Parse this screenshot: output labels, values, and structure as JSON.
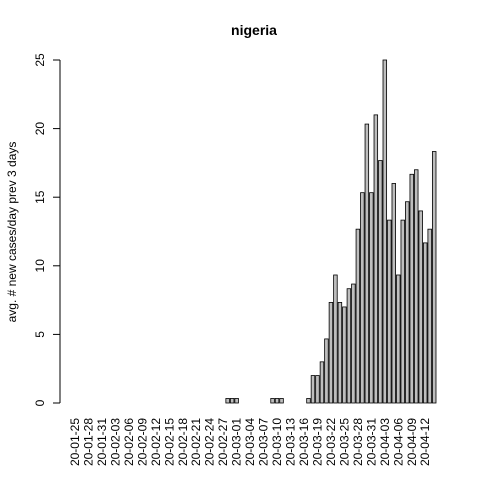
{
  "chart_data": {
    "type": "bar",
    "title": "nigeria",
    "y_label": "avg. # new cases/day prev  3  days",
    "categories": [
      "20-01-25",
      null,
      null,
      "20-01-28",
      null,
      null,
      "20-01-31",
      null,
      null,
      "20-02-03",
      null,
      null,
      "20-02-06",
      null,
      null,
      "20-02-09",
      null,
      null,
      "20-02-12",
      null,
      null,
      "20-02-15",
      null,
      null,
      "20-02-18",
      null,
      null,
      "20-02-21",
      null,
      null,
      "20-02-24",
      null,
      null,
      "20-02-27",
      null,
      null,
      "20-03-01",
      null,
      null,
      "20-03-04",
      null,
      null,
      "20-03-07",
      null,
      null,
      "20-03-10",
      null,
      null,
      "20-03-13",
      null,
      null,
      "20-03-16",
      null,
      null,
      "20-03-19",
      null,
      null,
      "20-03-22",
      null,
      null,
      "20-03-25",
      null,
      null,
      "20-03-28",
      null,
      null,
      "20-03-31",
      null,
      null,
      "20-04-03",
      null,
      null,
      "20-04-06",
      null,
      null,
      "20-04-09",
      null,
      null,
      "20-04-12",
      null,
      null
    ],
    "values": [
      0,
      0,
      0,
      0,
      0,
      0,
      0,
      0,
      0,
      0,
      0,
      0,
      0,
      0,
      0,
      0,
      0,
      0,
      0,
      0,
      0,
      0,
      0,
      0,
      0,
      0,
      0,
      0,
      0,
      0,
      0,
      0,
      0,
      0,
      0.33,
      0.33,
      0.33,
      0,
      0,
      0,
      0,
      0,
      0,
      0,
      0.33,
      0.33,
      0.33,
      0,
      0,
      0,
      0,
      0,
      0.33,
      2,
      2,
      3,
      4.67,
      7.33,
      9.33,
      7.33,
      7,
      8.33,
      8.67,
      12.67,
      15.33,
      20.33,
      15.33,
      21,
      17.67,
      25,
      13.33,
      16,
      9.33,
      13.33,
      14.67,
      16.67,
      17,
      14,
      11.67,
      12.67,
      18.33
    ],
    "color": "#bebebe",
    "ylim": [
      0,
      25
    ],
    "yticks": [
      0,
      5,
      10,
      15,
      20,
      25
    ],
    "grid": false
  }
}
